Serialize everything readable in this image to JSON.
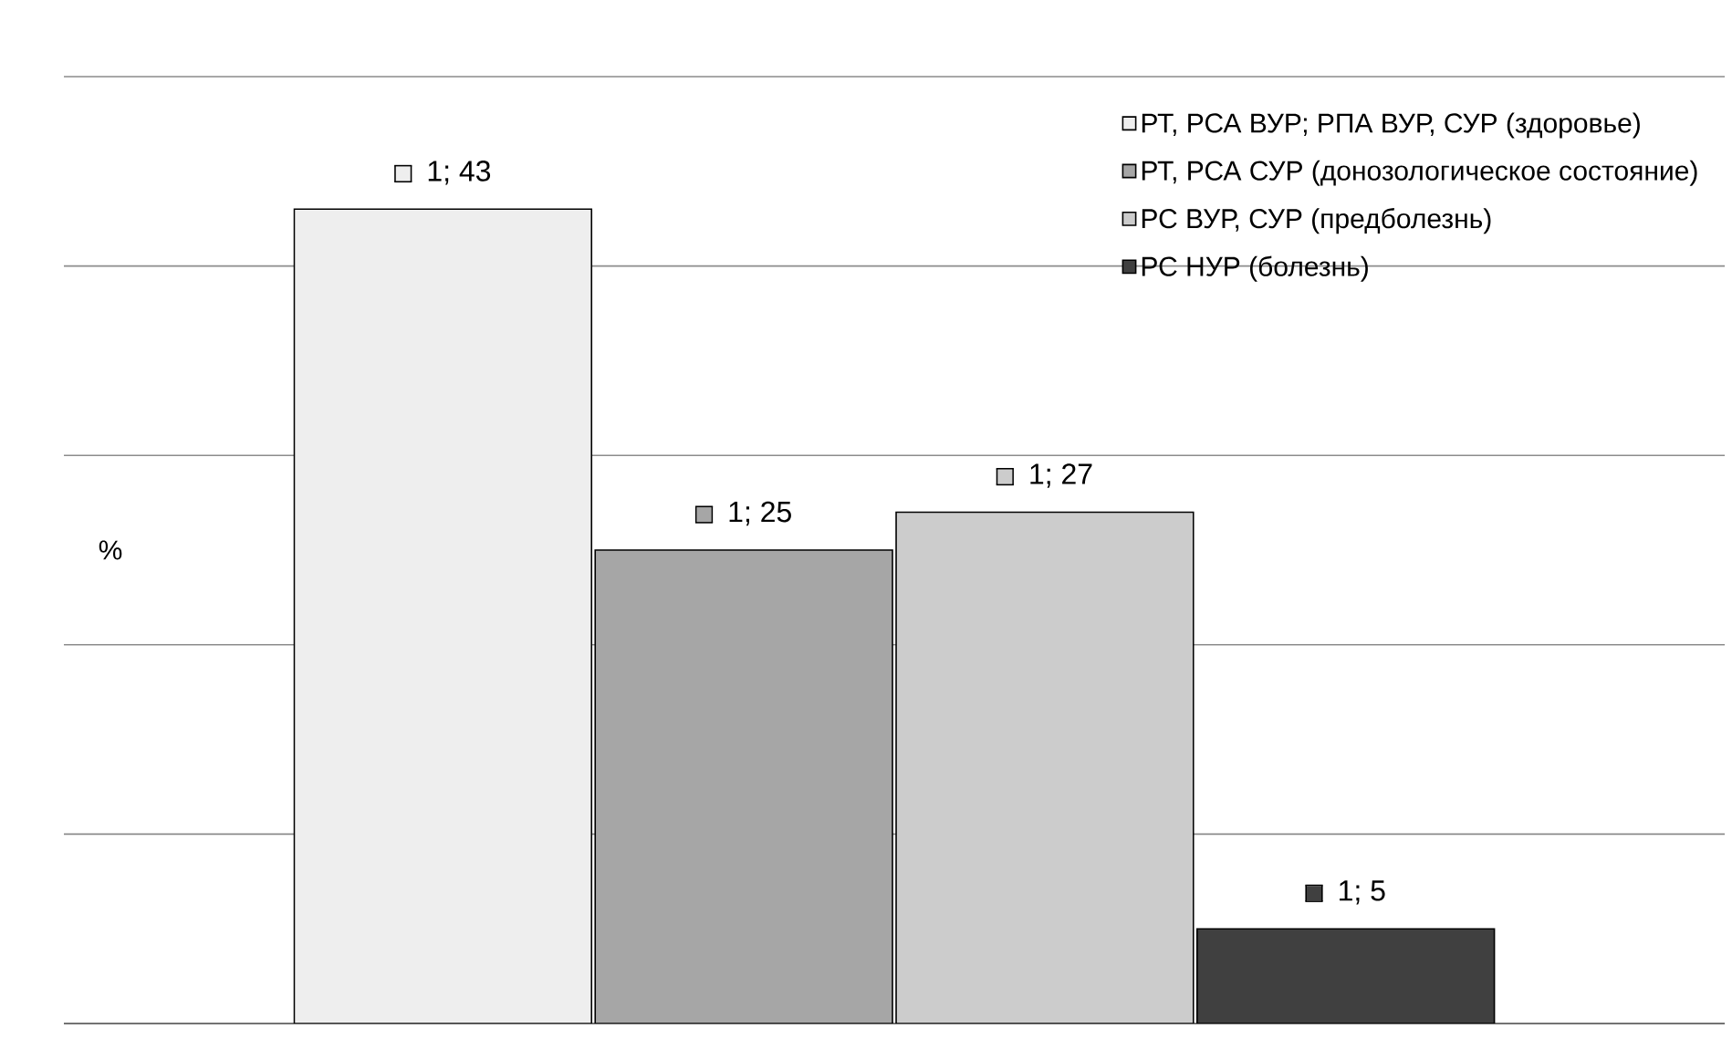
{
  "chart_data": {
    "type": "bar",
    "ylabel": "%",
    "categories": [
      null
    ],
    "series": [
      {
        "name": "РТ, РСА ВУР; РПА ВУР, СУР (здоровье)",
        "color": "#eeeeee",
        "values": [
          43
        ],
        "value_labels": [
          "1; 43"
        ]
      },
      {
        "name": "РТ, РСА СУР (донозологическое состояние)",
        "color": "#a6a6a6",
        "values": [
          25
        ],
        "value_labels": [
          "1; 25"
        ]
      },
      {
        "name": "РС ВУР, СУР (предболезнь)",
        "color": "#cccccc",
        "values": [
          27
        ],
        "value_labels": [
          "1; 27"
        ]
      },
      {
        "name": "РС НУР (болезнь)",
        "color": "#404040",
        "values": [
          5
        ],
        "value_labels": [
          "1; 5"
        ]
      }
    ],
    "ylim": [
      0,
      50
    ],
    "yticks": [
      {
        "value": 0,
        "label": null
      },
      {
        "value": 10,
        "label": null
      },
      {
        "value": 20,
        "label": null
      },
      {
        "value": 30,
        "label": null
      },
      {
        "value": 40,
        "label": null
      },
      {
        "value": 50,
        "label": null
      }
    ],
    "grid": "y",
    "legend": "top right"
  }
}
